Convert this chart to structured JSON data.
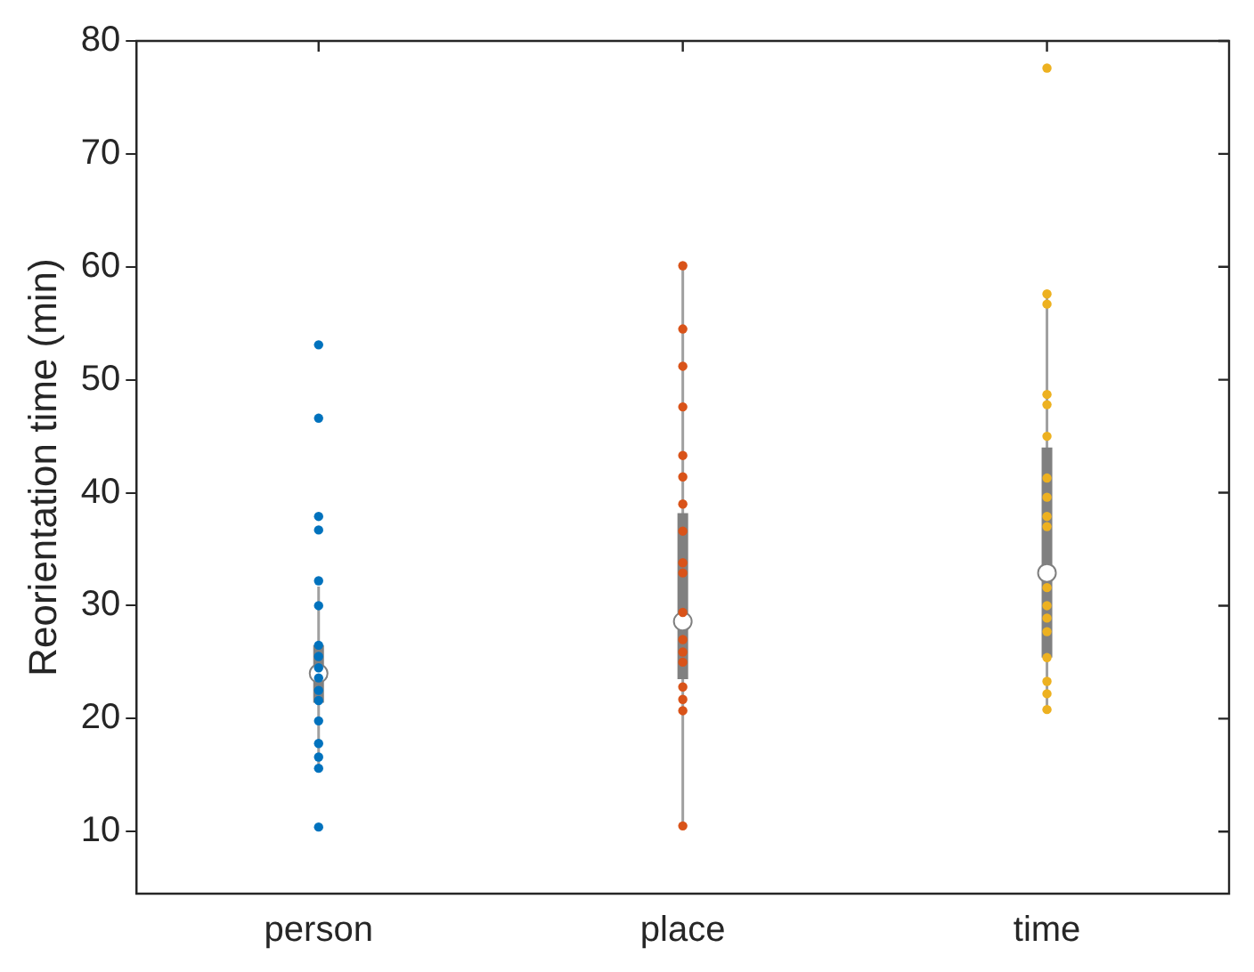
{
  "chart_data": {
    "type": "box",
    "ylabel": "Reorientation time (min)",
    "categories": [
      "person",
      "place",
      "time"
    ],
    "ylim": [
      4.5,
      80
    ],
    "yticks": [
      10,
      20,
      30,
      40,
      50,
      60,
      70,
      80
    ],
    "grid": false,
    "legend": false,
    "marker": "circle",
    "boxes": [
      {
        "low": 15.9,
        "q1": 21.4,
        "median": 24.0,
        "q3": 26.5,
        "high": 31.7
      },
      {
        "low": 10.5,
        "q1": 23.5,
        "median": 28.6,
        "q3": 38.2,
        "high": 60.1
      },
      {
        "low": 20.8,
        "q1": 25.4,
        "median": 32.9,
        "q3": 44.0,
        "high": 57.6
      }
    ],
    "series": [
      {
        "type": "scatter",
        "color": "#0072bd",
        "x": [
          "person",
          "person",
          "person",
          "person",
          "person",
          "person",
          "person",
          "person",
          "person",
          "person",
          "person",
          "person",
          "person",
          "person",
          "person",
          "person",
          "person"
        ],
        "values": [
          53.1,
          46.6,
          37.9,
          36.7,
          32.2,
          30.0,
          26.5,
          25.5,
          24.5,
          23.6,
          22.5,
          21.6,
          19.8,
          17.8,
          16.6,
          15.6,
          10.4
        ]
      },
      {
        "type": "scatter",
        "color": "#d95319",
        "x": [
          "place",
          "place",
          "place",
          "place",
          "place",
          "place",
          "place",
          "place",
          "place",
          "place",
          "place",
          "place",
          "place",
          "place",
          "place",
          "place",
          "place",
          "place"
        ],
        "values": [
          60.1,
          54.5,
          51.2,
          47.6,
          43.3,
          41.4,
          39.0,
          36.6,
          33.8,
          32.9,
          29.4,
          27.0,
          25.9,
          25.0,
          22.8,
          21.7,
          20.7,
          10.5
        ]
      },
      {
        "type": "scatter",
        "color": "#edb120",
        "x": [
          "time",
          "time",
          "time",
          "time",
          "time",
          "time",
          "time",
          "time",
          "time",
          "time",
          "time",
          "time",
          "time",
          "time",
          "time",
          "time",
          "time",
          "time"
        ],
        "values": [
          77.6,
          57.6,
          56.7,
          48.7,
          47.8,
          45.0,
          41.3,
          39.6,
          37.9,
          37.0,
          31.6,
          30.0,
          28.9,
          27.7,
          25.4,
          23.3,
          22.2,
          20.8
        ]
      }
    ]
  }
}
